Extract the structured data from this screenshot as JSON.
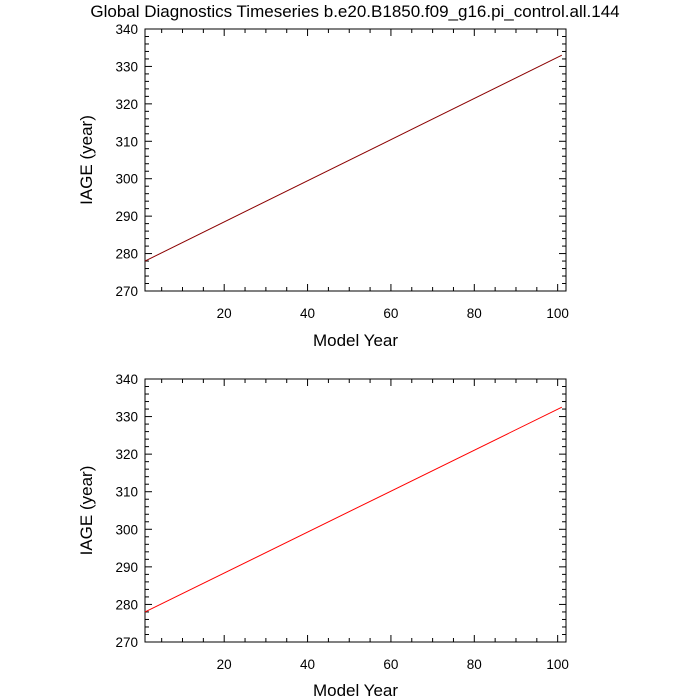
{
  "chart_data": [
    {
      "type": "line",
      "title": "Global Diagnostics Timeseries b.e20.B1850.f09_g16.pi_control.all.144",
      "xlabel": "Model Year",
      "ylabel": "IAGE (year)",
      "xlim": [
        1,
        102
      ],
      "ylim": [
        270,
        340
      ],
      "xticks": [
        20,
        40,
        60,
        80,
        100
      ],
      "yticks": [
        270,
        280,
        290,
        300,
        310,
        320,
        330,
        340
      ],
      "grid": false,
      "series": [
        {
          "color": "#8b0000",
          "x": [
            1,
            101
          ],
          "y": [
            278.0,
            333.0
          ]
        }
      ]
    },
    {
      "type": "line",
      "title": "",
      "xlabel": "Model Year",
      "ylabel": "IAGE (year)",
      "xlim": [
        1,
        102
      ],
      "ylim": [
        270,
        340
      ],
      "xticks": [
        20,
        40,
        60,
        80,
        100
      ],
      "yticks": [
        270,
        280,
        290,
        300,
        310,
        320,
        330,
        340
      ],
      "grid": false,
      "series": [
        {
          "color": "#ff0000",
          "x": [
            1,
            101
          ],
          "y": [
            278.0,
            332.5
          ]
        }
      ]
    }
  ]
}
